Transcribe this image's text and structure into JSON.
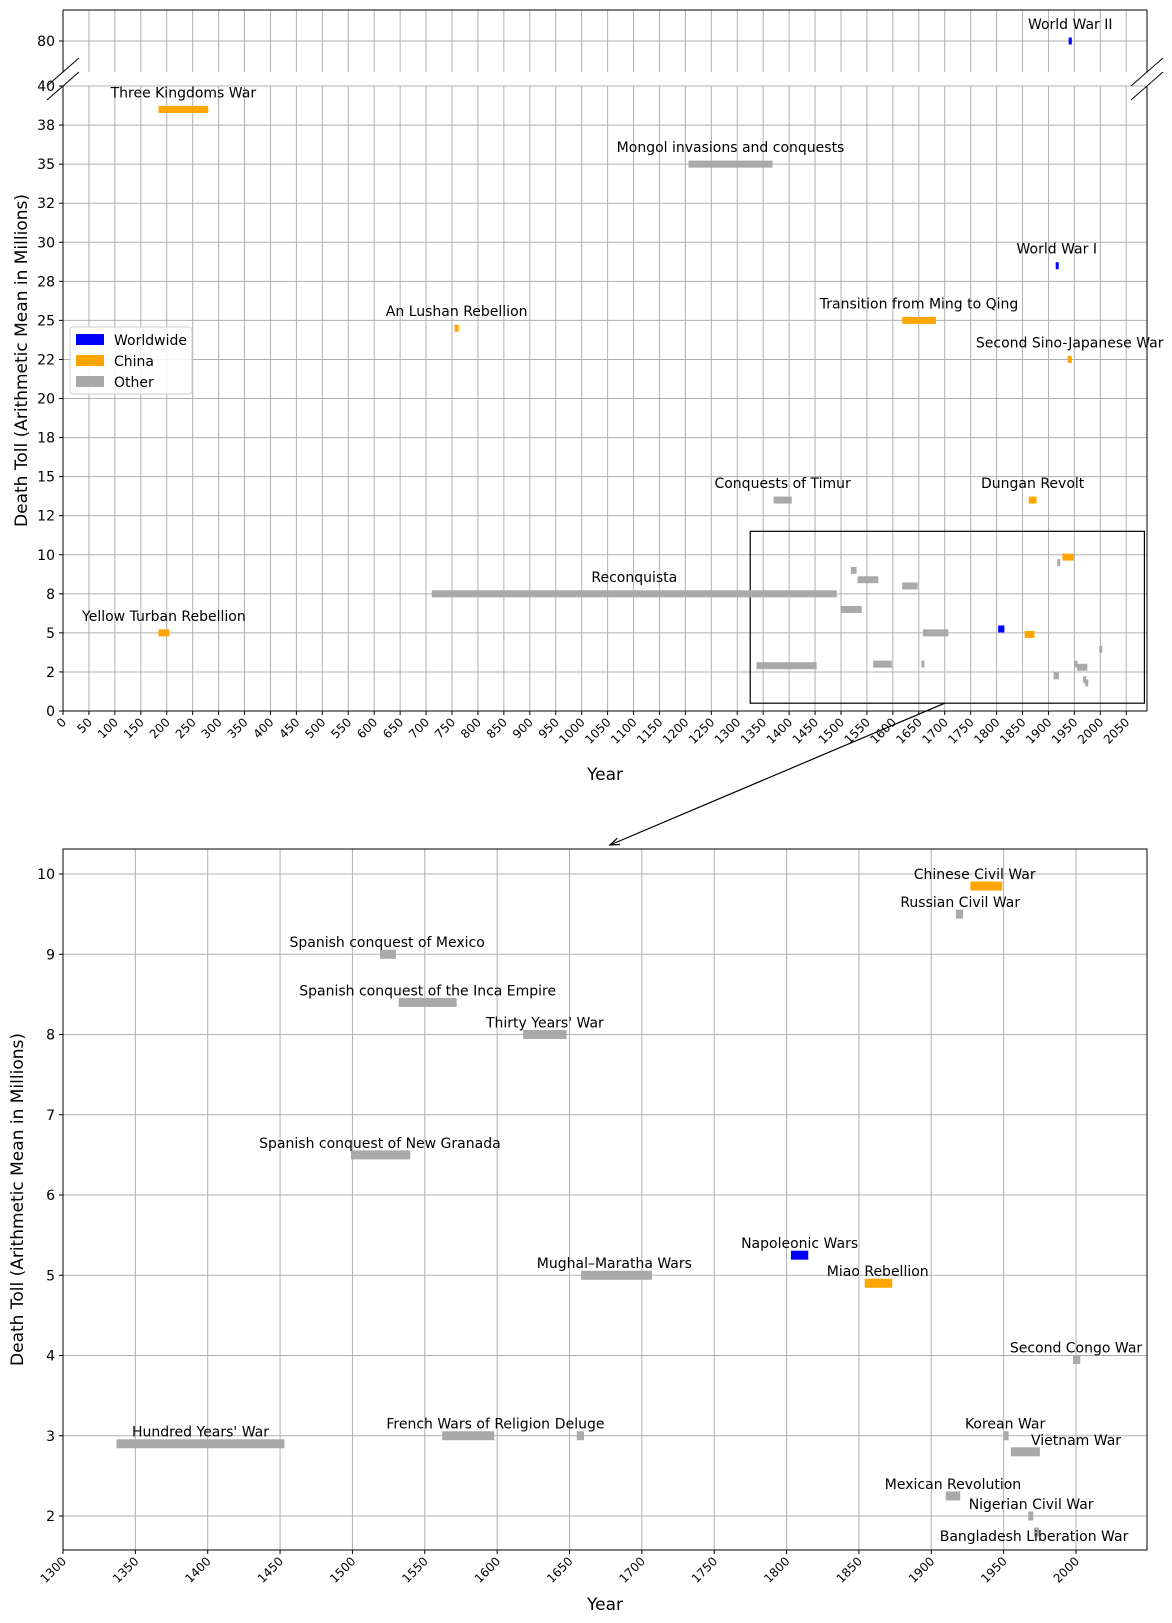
{
  "legend": {
    "placement": "center-left",
    "entries": [
      {
        "label": "Worldwide",
        "color": "#0000ff"
      },
      {
        "label": "China",
        "color": "#ffa500"
      },
      {
        "label": "Other",
        "color": "#a9a9a9"
      }
    ]
  },
  "chart_data": [
    {
      "name": "overview",
      "type": "bar",
      "orientation": "horizontal-timeline",
      "xlabel": "Year",
      "ylabel": "Death Toll (Arithmetic Mean in Millions)",
      "xlim": [
        0,
        2090
      ],
      "xticks": [
        0,
        50,
        100,
        150,
        200,
        250,
        300,
        350,
        400,
        450,
        500,
        550,
        600,
        650,
        700,
        750,
        800,
        850,
        900,
        950,
        1000,
        1050,
        1100,
        1150,
        1200,
        1250,
        1300,
        1350,
        1400,
        1450,
        1500,
        1550,
        1600,
        1650,
        1700,
        1750,
        1800,
        1850,
        1900,
        1950,
        2000,
        2050
      ],
      "ylim_lower": [
        0,
        40
      ],
      "ylim_upper": [
        77.5,
        82.5
      ],
      "yticks_lower": [
        0,
        2.5,
        5,
        7.5,
        10,
        12.5,
        15,
        17.5,
        20,
        22.5,
        25,
        27.5,
        30,
        32.5,
        35,
        37.5,
        40
      ],
      "ytick_labels_lower": [
        "0",
        "2",
        "5",
        "8",
        "10",
        "12",
        "15",
        "18",
        "20",
        "22",
        "25",
        "28",
        "30",
        "32",
        "35",
        "38",
        "40"
      ],
      "yticks_upper": [
        80
      ],
      "ytick_labels_upper": [
        "80"
      ],
      "broken_axis": true,
      "grid": true,
      "zoom_box": {
        "x": [
          1325,
          2085
        ],
        "y": [
          0.5,
          11.5
        ]
      },
      "events": [
        {
          "label": "World War II",
          "start": 1939,
          "end": 1945,
          "value": 80,
          "group": "Worldwide",
          "show_label": true
        },
        {
          "label": "Three Kingdoms War",
          "start": 184,
          "end": 280,
          "value": 38.5,
          "group": "China",
          "show_label": true
        },
        {
          "label": "Mongol invasions and conquests",
          "start": 1206,
          "end": 1368,
          "value": 35,
          "group": "Other",
          "show_label": true
        },
        {
          "label": "World War I",
          "start": 1914,
          "end": 1918,
          "value": 28.5,
          "group": "Worldwide",
          "show_label": true
        },
        {
          "label": "An Lushan Rebellion",
          "start": 755,
          "end": 763,
          "value": 24.5,
          "group": "China",
          "show_label": true
        },
        {
          "label": "Transition from Ming to Qing",
          "start": 1618,
          "end": 1683,
          "value": 25,
          "group": "China",
          "show_label": true
        },
        {
          "label": "Second Sino-Japanese War",
          "start": 1937,
          "end": 1945,
          "value": 22.5,
          "group": "China",
          "show_label": true
        },
        {
          "label": "Conquests of Timur",
          "start": 1370,
          "end": 1405,
          "value": 13.5,
          "group": "Other",
          "show_label": true
        },
        {
          "label": "Dungan Revolt",
          "start": 1862,
          "end": 1877,
          "value": 13.5,
          "group": "China",
          "show_label": true
        },
        {
          "label": "Reconquista",
          "start": 711,
          "end": 1492,
          "value": 7.5,
          "group": "Other",
          "show_label": true
        },
        {
          "label": "Yellow Turban Rebellion",
          "start": 184,
          "end": 205,
          "value": 5,
          "group": "China",
          "show_label": true
        },
        {
          "label": "Chinese Civil War",
          "start": 1927,
          "end": 1949,
          "value": 9.85,
          "group": "China",
          "show_label": false
        },
        {
          "label": "Russian Civil War",
          "start": 1917,
          "end": 1922,
          "value": 9.5,
          "group": "Other",
          "show_label": false
        },
        {
          "label": "Spanish conquest of Mexico",
          "start": 1519,
          "end": 1530,
          "value": 9.0,
          "group": "Other",
          "show_label": false
        },
        {
          "label": "Spanish conquest of the Inca Empire",
          "start": 1532,
          "end": 1572,
          "value": 8.4,
          "group": "Other",
          "show_label": false
        },
        {
          "label": "Thirty Years' War",
          "start": 1618,
          "end": 1648,
          "value": 8.0,
          "group": "Other",
          "show_label": false
        },
        {
          "label": "Spanish conquest of New Granada",
          "start": 1499,
          "end": 1540,
          "value": 6.5,
          "group": "Other",
          "show_label": false
        },
        {
          "label": "Napoleonic Wars",
          "start": 1803,
          "end": 1815,
          "value": 5.25,
          "group": "Worldwide",
          "show_label": false
        },
        {
          "label": "Mughal–Maratha Wars",
          "start": 1658,
          "end": 1707,
          "value": 5.0,
          "group": "Other",
          "show_label": false
        },
        {
          "label": "Miao Rebellion",
          "start": 1854,
          "end": 1873,
          "value": 4.9,
          "group": "China",
          "show_label": false
        },
        {
          "label": "Second Congo War",
          "start": 1998,
          "end": 2003,
          "value": 3.95,
          "group": "Other",
          "show_label": false
        },
        {
          "label": "Hundred Years' War",
          "start": 1337,
          "end": 1453,
          "value": 2.9,
          "group": "Other",
          "show_label": false
        },
        {
          "label": "French Wars of Religion",
          "start": 1562,
          "end": 1598,
          "value": 3.0,
          "group": "Other",
          "show_label": false
        },
        {
          "label": "Deluge",
          "start": 1655,
          "end": 1660,
          "value": 3.0,
          "group": "Other",
          "show_label": false
        },
        {
          "label": "Korean War",
          "start": 1950,
          "end": 1953,
          "value": 3.0,
          "group": "Other",
          "show_label": false
        },
        {
          "label": "Vietnam War",
          "start": 1955,
          "end": 1975,
          "value": 2.8,
          "group": "Other",
          "show_label": false
        },
        {
          "label": "Mexican Revolution",
          "start": 1910,
          "end": 1920,
          "value": 2.25,
          "group": "Other",
          "show_label": false
        },
        {
          "label": "Nigerian Civil War",
          "start": 1967,
          "end": 1970,
          "value": 2.0,
          "group": "Other",
          "show_label": false
        },
        {
          "label": "Bangladesh Liberation War",
          "start": 1971,
          "end": 1972,
          "value": 1.8,
          "group": "Other",
          "show_label": false
        }
      ]
    },
    {
      "name": "zoom",
      "type": "bar",
      "orientation": "horizontal-timeline",
      "xlabel": "Year",
      "ylabel": "Death Toll (Arithmetic Mean in Millions)",
      "xlim": [
        1300,
        2050
      ],
      "xticks": [
        1300,
        1350,
        1400,
        1450,
        1500,
        1550,
        1600,
        1650,
        1700,
        1750,
        1800,
        1850,
        1900,
        1950,
        2000
      ],
      "ylim": [
        1.57,
        10.3
      ],
      "yticks": [
        2,
        3,
        4,
        5,
        6,
        7,
        8,
        9,
        10
      ],
      "grid": true,
      "events": [
        {
          "label": "Chinese Civil War",
          "start": 1927,
          "end": 1949,
          "value": 9.85,
          "group": "China",
          "label_x": 1930,
          "label_y": 10.0
        },
        {
          "label": "Russian Civil War",
          "start": 1917,
          "end": 1922,
          "value": 9.5,
          "group": "Other",
          "label_x": 1920,
          "label_y": 9.65
        },
        {
          "label": "Spanish conquest of Mexico",
          "start": 1519,
          "end": 1530,
          "value": 9.0,
          "group": "Other",
          "label_x": 1524,
          "label_y": 9.15
        },
        {
          "label": "Spanish conquest of the Inca Empire",
          "start": 1532,
          "end": 1572,
          "value": 8.4,
          "group": "Other",
          "label_x": 1552,
          "label_y": 8.55
        },
        {
          "label": "Thirty Years' War",
          "start": 1618,
          "end": 1648,
          "value": 8.0,
          "group": "Other",
          "label_x": 1633,
          "label_y": 8.15
        },
        {
          "label": "Spanish conquest of New Granada",
          "start": 1499,
          "end": 1540,
          "value": 6.5,
          "group": "Other",
          "label_x": 1519,
          "label_y": 6.65
        },
        {
          "label": "Napoleonic Wars",
          "start": 1803,
          "end": 1815,
          "value": 5.25,
          "group": "Worldwide",
          "label_x": 1809,
          "label_y": 5.4
        },
        {
          "label": "Mughal–Maratha Wars",
          "start": 1658,
          "end": 1707,
          "value": 5.0,
          "group": "Other",
          "label_x": 1681,
          "label_y": 5.15
        },
        {
          "label": "Miao Rebellion",
          "start": 1854,
          "end": 1873,
          "value": 4.9,
          "group": "China",
          "label_x": 1863,
          "label_y": 5.05
        },
        {
          "label": "Second Congo War",
          "start": 1998,
          "end": 2003,
          "value": 3.95,
          "group": "Other",
          "label_x": 2000,
          "label_y": 4.1
        },
        {
          "label": "Hundred Years' War",
          "start": 1337,
          "end": 1453,
          "value": 2.9,
          "group": "Other",
          "label_x": 1395,
          "label_y": 3.05
        },
        {
          "label": "French Wars of Religion",
          "start": 1562,
          "end": 1598,
          "value": 3.0,
          "group": "Other",
          "label_x": 1580,
          "label_y": 3.15
        },
        {
          "label": "Deluge",
          "start": 1655,
          "end": 1660,
          "value": 3.0,
          "group": "Other",
          "label_x": 1657,
          "label_y": 3.15
        },
        {
          "label": "Korean War",
          "start": 1950,
          "end": 1953,
          "value": 3.0,
          "group": "Other",
          "label_x": 1951,
          "label_y": 3.15
        },
        {
          "label": "Vietnam War",
          "start": 1955,
          "end": 1975,
          "value": 2.8,
          "group": "Other",
          "label_x": 2000,
          "label_y": 2.95
        },
        {
          "label": "Mexican Revolution",
          "start": 1910,
          "end": 1920,
          "value": 2.25,
          "group": "Other",
          "label_x": 1915,
          "label_y": 2.4
        },
        {
          "label": "Nigerian Civil War",
          "start": 1967,
          "end": 1970,
          "value": 2.0,
          "group": "Other",
          "label_x": 1969,
          "label_y": 2.15
        },
        {
          "label": "Bangladesh Liberation War",
          "start": 1971,
          "end": 1972,
          "value": 1.8,
          "group": "Other",
          "label_x": 1971,
          "label_y": 1.75
        }
      ]
    }
  ]
}
